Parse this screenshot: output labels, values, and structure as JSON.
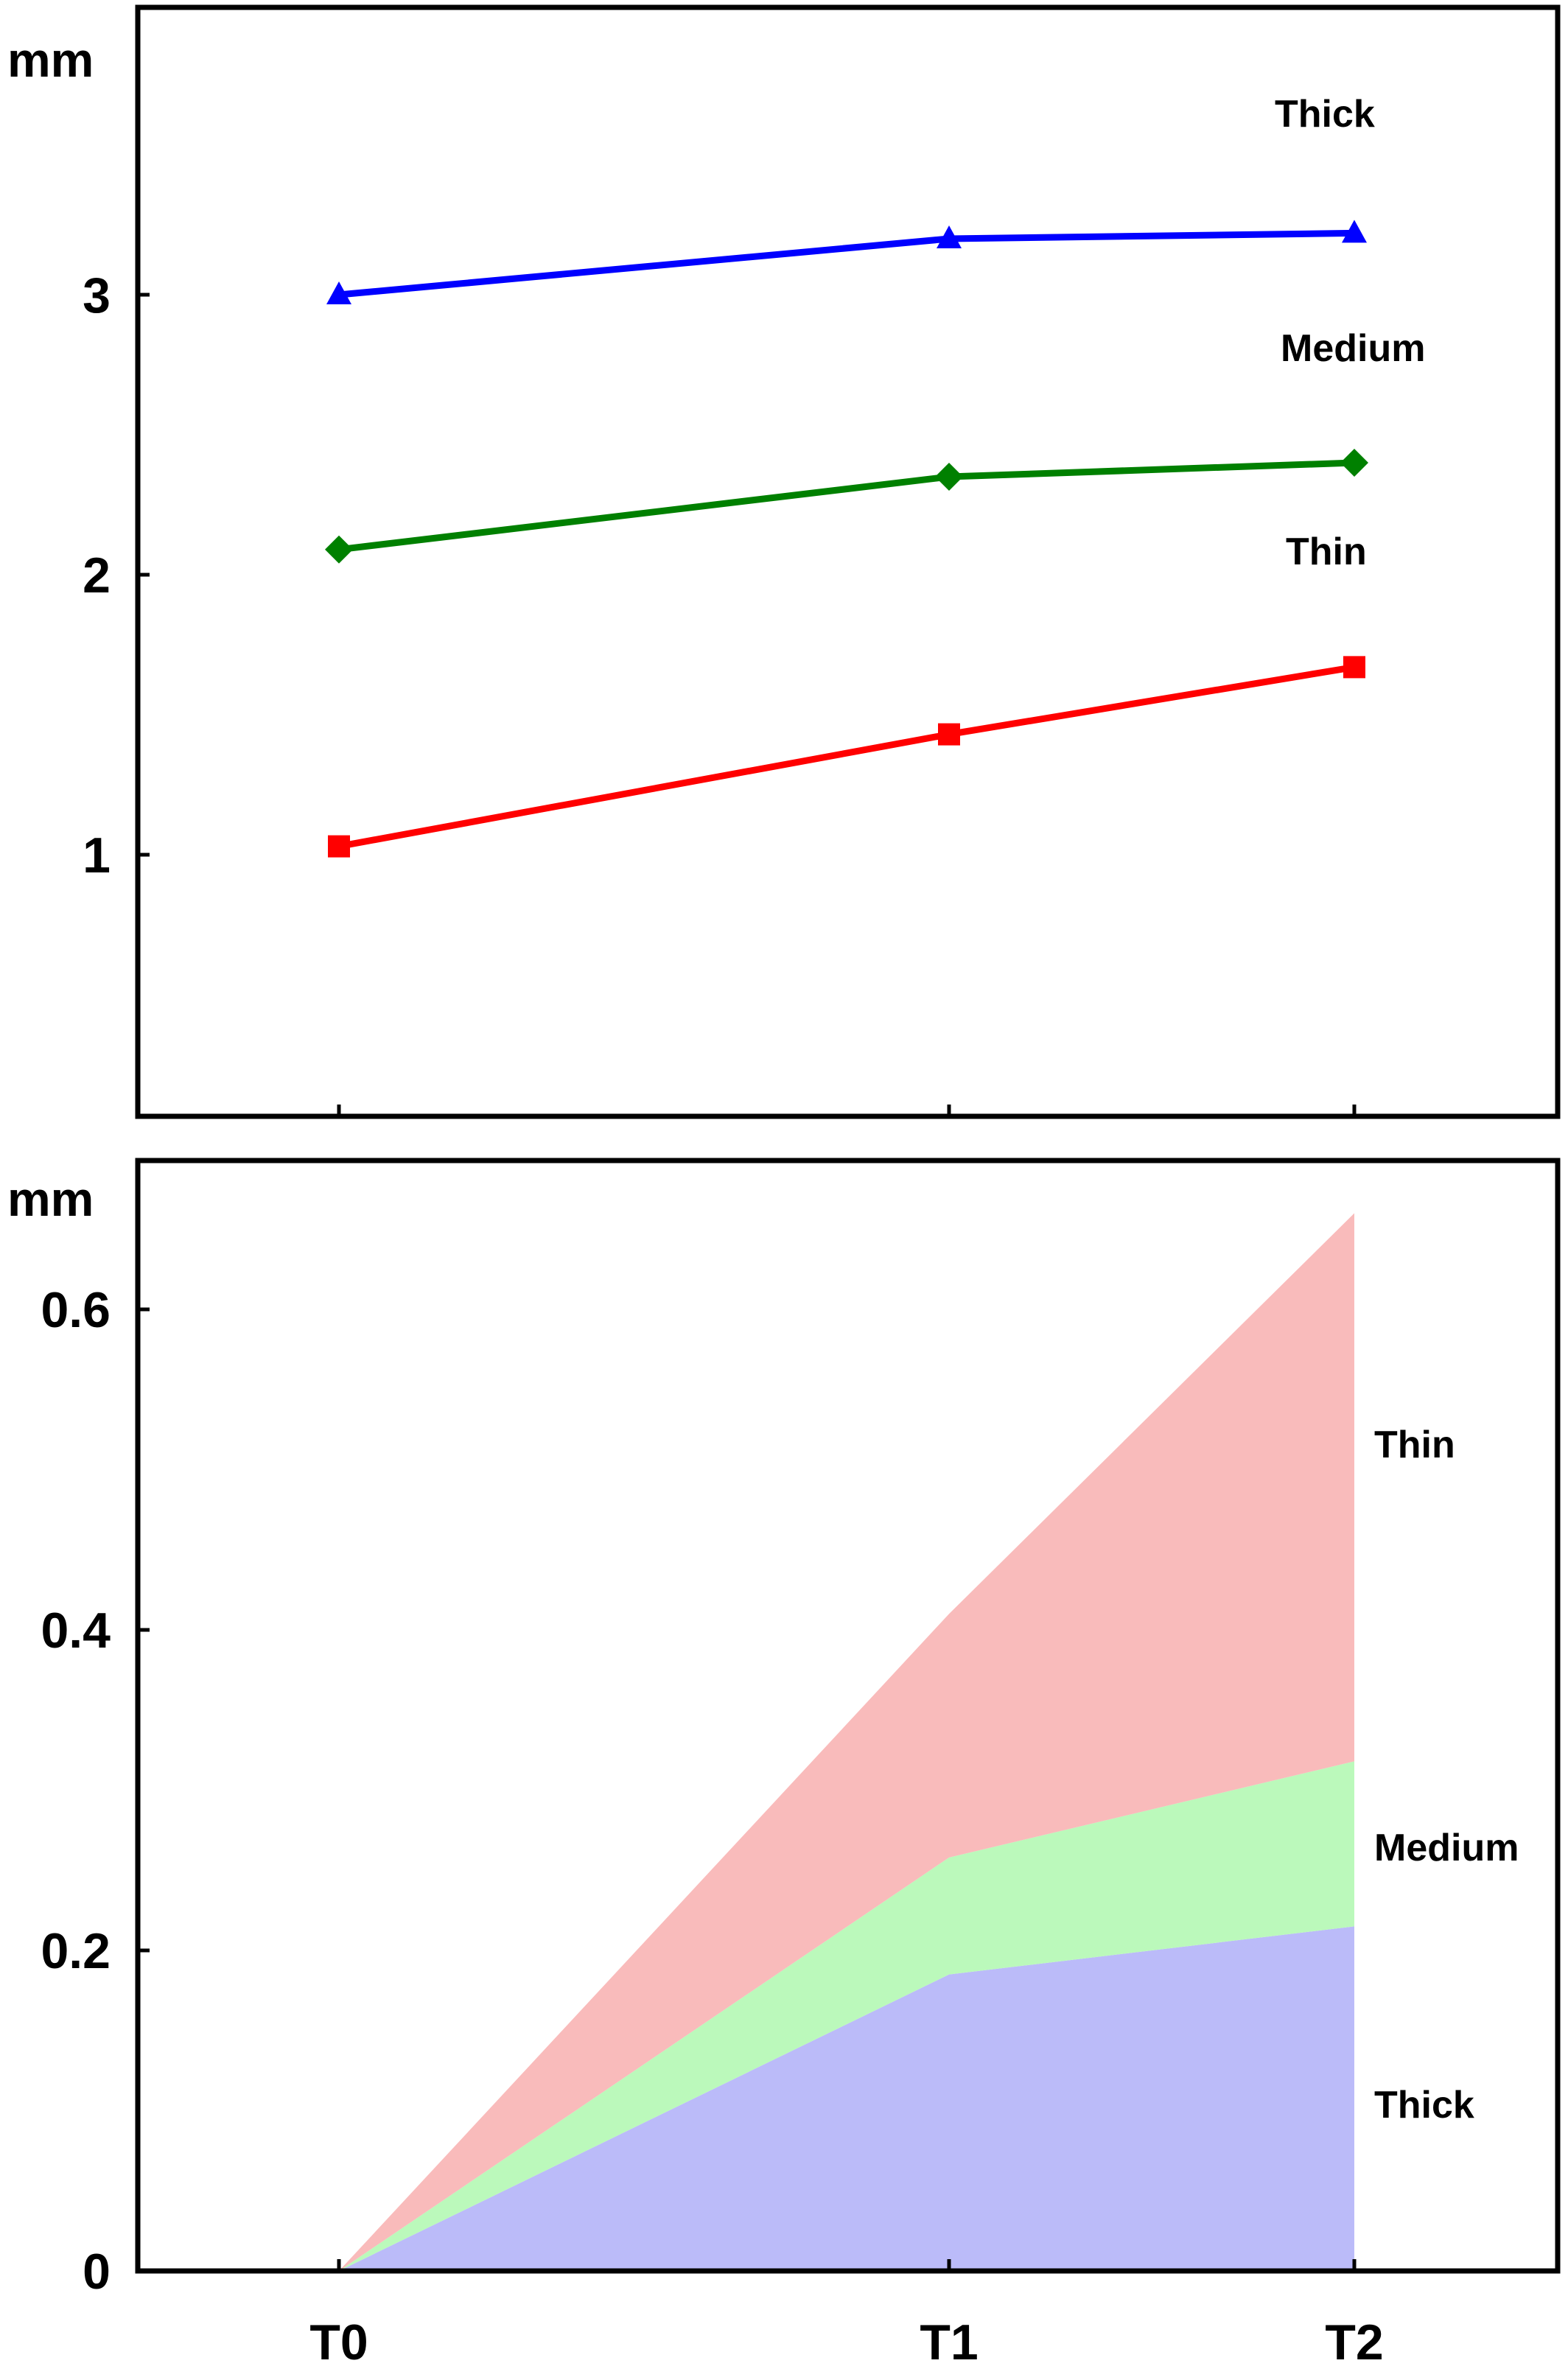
{
  "chart_data": [
    {
      "type": "line",
      "ylabel": "mm",
      "x": [
        "T0",
        "T1",
        "T2"
      ],
      "yticks": [
        1,
        2,
        3
      ],
      "ylim": [
        0,
        3.95
      ],
      "series": [
        {
          "name": "Thick",
          "color": "#0000ff",
          "marker": "triangle",
          "values": [
            3.0,
            3.2,
            3.22
          ]
        },
        {
          "name": "Medium",
          "color": "#008000",
          "marker": "diamond",
          "values": [
            2.09,
            2.35,
            2.4
          ]
        },
        {
          "name": "Thin",
          "color": "#ff0000",
          "marker": "square",
          "values": [
            1.03,
            1.43,
            1.67
          ]
        }
      ]
    },
    {
      "type": "area",
      "stacked": true,
      "ylabel": "mm",
      "x": [
        "T0",
        "T1",
        "T2"
      ],
      "yticks": [
        0,
        0.2,
        0.4,
        0.6
      ],
      "ylim": [
        0,
        0.68
      ],
      "series": [
        {
          "name": "Thick",
          "color": "#bbbbf9",
          "values": [
            0,
            0.185,
            0.215
          ]
        },
        {
          "name": "Medium",
          "color": "#bbf9bb",
          "values": [
            0,
            0.073,
            0.103
          ]
        },
        {
          "name": "Thin",
          "color": "#f9bbbb",
          "values": [
            0,
            0.152,
            0.342
          ]
        }
      ]
    }
  ]
}
